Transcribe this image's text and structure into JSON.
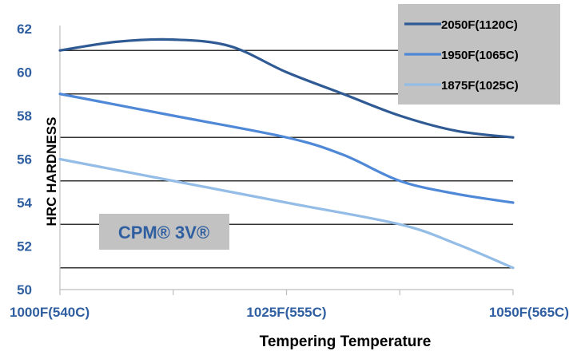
{
  "chart_data": {
    "type": "line",
    "title": "",
    "xlabel": "Tempering Temperature",
    "ylabel": "HRC HARDNESS",
    "x_categories": [
      "1000F(540C)",
      "1025F(555C)",
      "1050F(565C)"
    ],
    "x_range": [
      0,
      2
    ],
    "ylim": [
      50,
      62
    ],
    "y_ticks": [
      "50",
      "52",
      "54",
      "56",
      "58",
      "60",
      "62"
    ],
    "gridlines": [
      51,
      53,
      55,
      57,
      59,
      61
    ],
    "legend_position": "top-right",
    "annotation": "CPM® 3V®",
    "series": [
      {
        "name": "2050F(1120C)",
        "color": "#2f5a94",
        "points": [
          [
            0,
            61.0
          ],
          [
            0.25,
            61.4
          ],
          [
            0.5,
            61.5
          ],
          [
            0.75,
            61.2
          ],
          [
            1.0,
            60.0
          ],
          [
            1.25,
            59.0
          ],
          [
            1.5,
            58.0
          ],
          [
            1.75,
            57.3
          ],
          [
            2.0,
            57.0
          ]
        ]
      },
      {
        "name": "1950F(1065C)",
        "color": "#4e88d6",
        "points": [
          [
            0,
            59.0
          ],
          [
            0.5,
            58.0
          ],
          [
            1.0,
            57.0
          ],
          [
            1.25,
            56.2
          ],
          [
            1.5,
            55.0
          ],
          [
            1.75,
            54.4
          ],
          [
            2.0,
            54.0
          ]
        ]
      },
      {
        "name": "1875F(1025C)",
        "color": "#93bce6",
        "points": [
          [
            0,
            56.0
          ],
          [
            0.5,
            55.0
          ],
          [
            1.0,
            54.0
          ],
          [
            1.5,
            53.0
          ],
          [
            1.75,
            52.1
          ],
          [
            2.0,
            51.0
          ]
        ]
      }
    ]
  }
}
